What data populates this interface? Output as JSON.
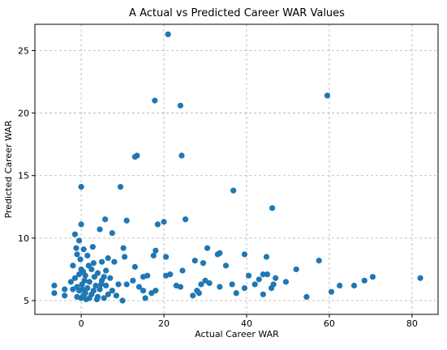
{
  "chart_data": {
    "type": "scatter",
    "title": "A Actual vs Predicted Career WAR Values",
    "x_label": "Actual Career WAR",
    "y_label": "Predicted Career WAR",
    "color": "#1f77b4",
    "grid": true,
    "xlim": [
      -11.2,
      86.3
    ],
    "ylim": [
      3.9,
      27.1
    ],
    "xticks": [
      0,
      20,
      40,
      60,
      80
    ],
    "yticks": [
      5,
      10,
      15,
      20,
      25
    ],
    "x": [
      21,
      17.8,
      24,
      59.5,
      13.5,
      13,
      24.3,
      0,
      9.5,
      36.8,
      46.2,
      25.2,
      0,
      5.8,
      11,
      20,
      18.5,
      -1.5,
      -0.5,
      4.5,
      7.5,
      18,
      17.5,
      20.5,
      10.2,
      30.5,
      33.5,
      33,
      39.5,
      35,
      27.5,
      44.8,
      57.5,
      29.5,
      52,
      44,
      40.5,
      43,
      45,
      47,
      49.5,
      46.5,
      46,
      42,
      39.5,
      36.5,
      33.5,
      31,
      30,
      29,
      28,
      27,
      28.5,
      37.5,
      44,
      54.5,
      60.5,
      62.5,
      66,
      68.5,
      70.5,
      82,
      24,
      23,
      24.5,
      21.5,
      20.5,
      16,
      15,
      13,
      12.5,
      14,
      15,
      15.5,
      17,
      18,
      10,
      9,
      11,
      10.5,
      8,
      -6.5,
      -6.5,
      -4,
      -4,
      -2.5,
      -2,
      -1,
      0,
      0,
      0.5,
      1,
      -0.5,
      1.5,
      0.2,
      -1,
      2,
      1,
      0.5,
      -0.5,
      2.5,
      3,
      3.5,
      2.5,
      4,
      4.5,
      5,
      5.5,
      6,
      6.5,
      7,
      7.5,
      3,
      4,
      5,
      1.5,
      -1.5,
      -2,
      -1,
      0.8,
      2,
      3.2,
      6,
      6.5,
      5.5,
      8.5,
      1.8,
      -0.2,
      0.6,
      2.8,
      -1.2,
      0.3,
      1.2,
      3.8,
      4.8
    ],
    "y": [
      26.3,
      21,
      20.6,
      21.4,
      16.6,
      16.5,
      16.6,
      14.1,
      14.1,
      13.8,
      12.4,
      11.5,
      11.1,
      11.5,
      11.4,
      11.3,
      11.1,
      10.3,
      9.8,
      10.7,
      10.4,
      9,
      8.6,
      8.5,
      9.2,
      9.2,
      8.8,
      8.7,
      8.7,
      7.8,
      8.2,
      8.5,
      8.2,
      8,
      7.5,
      7.1,
      7,
      6.7,
      7.1,
      6.8,
      6.5,
      6.3,
      6,
      6.3,
      6,
      6.3,
      6.1,
      6.4,
      6.6,
      6.3,
      5.8,
      5.4,
      5.6,
      5.6,
      5.5,
      5.3,
      5.7,
      6.2,
      6.2,
      6.6,
      6.9,
      6.8,
      6.1,
      6.2,
      7.4,
      7.1,
      7,
      7,
      6.9,
      7.7,
      6.6,
      6.1,
      5.8,
      5.2,
      5.6,
      5.8,
      5,
      6.3,
      6.3,
      8.5,
      8.1,
      6.2,
      5.6,
      5.4,
      5.9,
      6.5,
      7.8,
      8.7,
      7.5,
      5.2,
      5.4,
      5.6,
      5.8,
      6,
      6.3,
      6.1,
      6.5,
      7,
      7.3,
      7.1,
      5.5,
      5.8,
      6.2,
      7.5,
      5.3,
      5.9,
      6.6,
      6.9,
      6.2,
      5.5,
      6.8,
      5.8,
      8,
      7.2,
      8.1,
      8.6,
      6.8,
      5.9,
      5.3,
      6.6,
      5.2,
      6.9,
      7.4,
      8.4,
      5.2,
      5.4,
      7.8,
      8.3,
      9.1,
      9.3,
      9.2,
      5.9,
      5.1,
      5.1,
      6.3
    ]
  }
}
